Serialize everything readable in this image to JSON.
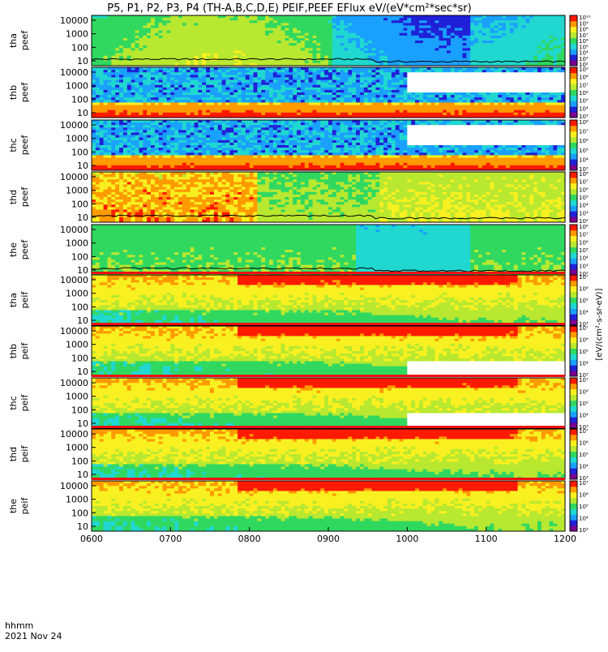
{
  "title": "P5, P1, P2, P3, P4 (TH-A,B,C,D,E) PEIF,PEEF EFlux eV/(eV*cm²*sec*sr)",
  "footer": {
    "axis_label": "hhmm",
    "date": "2021 Nov 24"
  },
  "colors": {
    "colormap": [
      "#7a0090",
      "#2020d8",
      "#1aa0ff",
      "#20d8d0",
      "#30d860",
      "#b8e830",
      "#f8f020",
      "#ff9a00",
      "#ff1a00"
    ],
    "gap": "#ffffff",
    "overlay_line": "#000000",
    "status_red": "#ee1111",
    "status_yellow": "#f4f000"
  },
  "chart_data": {
    "type": "heatmap",
    "x_axis": {
      "label": "hhmm",
      "range": [
        "0600",
        "1200"
      ],
      "ticks": [
        "0600",
        "0700",
        "0800",
        "0900",
        "1000",
        "1100",
        "1200"
      ]
    },
    "y_ticks": [
      "10",
      "100",
      "1000",
      "10000"
    ],
    "colorbar_title": "[eV/(cm²-s-sr-eV)]",
    "panels": [
      {
        "label": [
          "tha",
          "peef"
        ],
        "colorbar_ticks": [
          "10²",
          "10³",
          "10⁴",
          "10⁵",
          "10⁶",
          "10⁷",
          "10⁸",
          "10⁹",
          "10¹⁰"
        ],
        "gap_from": null,
        "line": true
      },
      {
        "label": [
          "thb",
          "peef"
        ],
        "colorbar_ticks": [
          "10³",
          "10⁴",
          "10⁵",
          "10⁶",
          "10⁷",
          "10⁸",
          "10⁹"
        ],
        "gap_from": "1000",
        "line": false
      },
      {
        "label": [
          "thc",
          "peef"
        ],
        "colorbar_ticks": [
          "10³",
          "10⁴",
          "10⁵",
          "10⁶",
          "10⁷",
          "10⁸"
        ],
        "gap_from": "1000",
        "line": false
      },
      {
        "label": [
          "thd",
          "peef"
        ],
        "colorbar_ticks": [
          "10²",
          "10³",
          "10⁴",
          "10⁵",
          "10⁶",
          "10⁷",
          "10⁸"
        ],
        "gap_from": null,
        "line": true
      },
      {
        "label": [
          "the",
          "peef"
        ],
        "colorbar_ticks": [
          "10²",
          "10³",
          "10⁴",
          "10⁵",
          "10⁶",
          "10⁷",
          "10⁸"
        ],
        "gap_from": null,
        "line": true
      },
      {
        "label": [
          "tha",
          "peif"
        ],
        "colorbar_ticks": [
          "10³",
          "10⁴",
          "10⁵",
          "10⁶",
          "10⁷"
        ],
        "gap_from": null,
        "line": false
      },
      {
        "label": [
          "thb",
          "peif"
        ],
        "colorbar_ticks": [
          "10³",
          "10⁴",
          "10⁵",
          "10⁶",
          "10⁷"
        ],
        "gap_from": "1000",
        "line": false
      },
      {
        "label": [
          "thc",
          "peif"
        ],
        "colorbar_ticks": [
          "10³",
          "10⁴",
          "10⁵",
          "10⁶",
          "10⁷"
        ],
        "gap_from": "1000",
        "line": false
      },
      {
        "label": [
          "thd",
          "peif"
        ],
        "colorbar_ticks": [
          "10³",
          "10⁴",
          "10⁵",
          "10⁶",
          "10⁷"
        ],
        "gap_from": null,
        "line": false
      },
      {
        "label": [
          "the",
          "peif"
        ],
        "colorbar_ticks": [
          "10³",
          "10⁴",
          "10⁵",
          "10⁶",
          "10⁷"
        ],
        "gap_from": null,
        "line": false
      }
    ]
  }
}
